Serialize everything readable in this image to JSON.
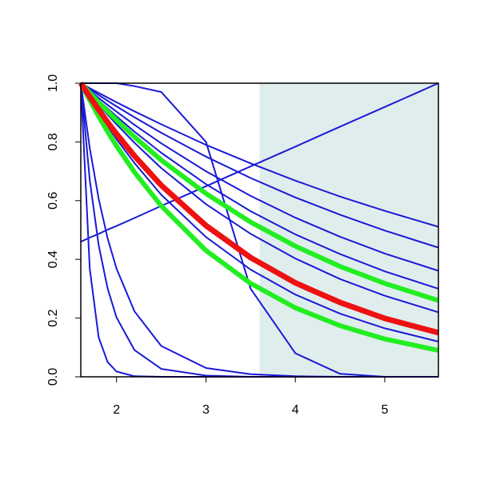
{
  "chart_data": {
    "type": "line",
    "x": [
      1.6,
      1.7,
      1.8,
      1.9,
      2.0,
      2.2,
      2.5,
      3.0,
      3.5,
      4.0,
      4.5,
      5.0,
      5.6
    ],
    "shaded_region": {
      "x": [
        3.6,
        5.6
      ],
      "color": "#e0eded"
    },
    "series": [
      {
        "color": "#1a1ad6",
        "width": 2,
        "values": [
          1,
          0.983,
          0.967,
          0.951,
          0.935,
          0.904,
          0.86,
          0.79,
          0.727,
          0.668,
          0.614,
          0.565,
          0.511
        ]
      },
      {
        "color": "#1a1ad6",
        "width": 2,
        "values": [
          1,
          0.98,
          0.96,
          0.94,
          0.921,
          0.884,
          0.831,
          0.75,
          0.677,
          0.611,
          0.552,
          0.498,
          0.44
        ]
      },
      {
        "color": "#1a1ad6",
        "width": 2,
        "values": [
          1,
          0.975,
          0.95,
          0.926,
          0.903,
          0.858,
          0.795,
          0.7,
          0.616,
          0.542,
          0.477,
          0.42,
          0.361
        ]
      },
      {
        "color": "#1a1ad6",
        "width": 2,
        "values": [
          1,
          0.97,
          0.942,
          0.914,
          0.887,
          0.835,
          0.763,
          0.656,
          0.564,
          0.485,
          0.418,
          0.359,
          0.3
        ]
      },
      {
        "color": "#1a1ad6",
        "width": 2,
        "values": [
          1,
          0.963,
          0.927,
          0.893,
          0.86,
          0.797,
          0.711,
          0.588,
          0.487,
          0.403,
          0.333,
          0.276,
          0.22
        ]
      },
      {
        "color": "#1a1ad6",
        "width": 2,
        "values": [
          1,
          0.948,
          0.899,
          0.853,
          0.809,
          0.728,
          0.62,
          0.476,
          0.365,
          0.28,
          0.215,
          0.165,
          0.12
        ]
      },
      {
        "color": "#1a1ad6",
        "width": 2,
        "values": [
          0.46,
          0.474,
          0.487,
          0.501,
          0.514,
          0.541,
          0.582,
          0.649,
          0.717,
          0.784,
          0.852,
          0.919,
          1.0
        ]
      },
      {
        "color": "#1a1ad6",
        "width": 2,
        "values": [
          1,
          1,
          1,
          1,
          1,
          0.99,
          0.97,
          0.8,
          0.3,
          0.08,
          0.01,
          0,
          0
        ]
      },
      {
        "color": "#1a1ad6",
        "width": 2,
        "values": [
          1,
          0.368,
          0.135,
          0.05,
          0.018,
          0.002,
          0,
          0,
          0,
          0,
          0,
          0,
          0
        ]
      },
      {
        "color": "#1a1ad6",
        "width": 2,
        "values": [
          1,
          0.67,
          0.449,
          0.301,
          0.202,
          0.091,
          0.027,
          0.004,
          0,
          0,
          0,
          0,
          0
        ]
      },
      {
        "color": "#1a1ad6",
        "width": 2,
        "values": [
          1,
          0.779,
          0.607,
          0.472,
          0.368,
          0.223,
          0.105,
          0.03,
          0.009,
          0.002,
          0,
          0,
          0
        ]
      },
      {
        "color": "#22ee22",
        "width": 6,
        "values": [
          1,
          0.967,
          0.935,
          0.904,
          0.874,
          0.817,
          0.738,
          0.624,
          0.527,
          0.445,
          0.376,
          0.318,
          0.26
        ]
      },
      {
        "color": "#22ee22",
        "width": 6,
        "values": [
          1,
          0.942,
          0.887,
          0.835,
          0.786,
          0.697,
          0.582,
          0.43,
          0.318,
          0.235,
          0.174,
          0.129,
          0.09
        ]
      },
      {
        "color": "#ee1111",
        "width": 7,
        "values": [
          1,
          0.954,
          0.91,
          0.867,
          0.827,
          0.752,
          0.652,
          0.515,
          0.406,
          0.32,
          0.253,
          0.199,
          0.15
        ]
      }
    ],
    "xlim": [
      1.6,
      5.6
    ],
    "ylim": [
      0,
      1
    ],
    "xticks": [
      2,
      3,
      4,
      5
    ],
    "yticks": [
      {
        "value": 0,
        "label": "0.0"
      },
      {
        "value": 0.2,
        "label": "0.2"
      },
      {
        "value": 0.4,
        "label": "0.4"
      },
      {
        "value": 0.6,
        "label": "0.6"
      },
      {
        "value": 0.8,
        "label": "0.8"
      },
      {
        "value": 1,
        "label": "1.0"
      }
    ]
  }
}
